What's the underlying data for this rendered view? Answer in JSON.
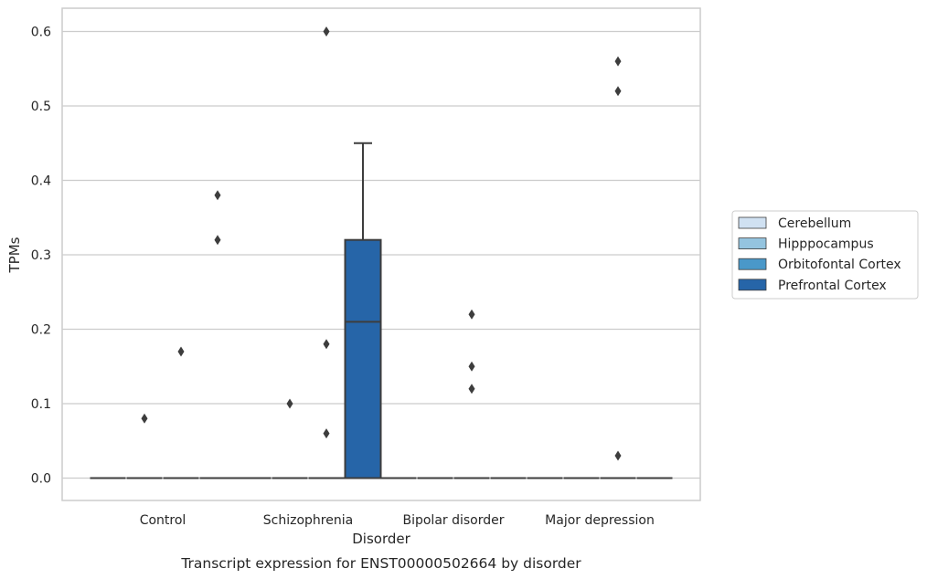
{
  "chart_data": {
    "type": "box",
    "title": "",
    "caption": "Transcript expression for ENST00000502664 by disorder",
    "xlabel": "Disorder",
    "ylabel": "TPMs",
    "ylim": [
      -0.03,
      0.63
    ],
    "yticks": [
      0.0,
      0.1,
      0.2,
      0.3,
      0.4,
      0.5,
      0.6
    ],
    "ytick_labels": [
      "0.0",
      "0.1",
      "0.2",
      "0.3",
      "0.4",
      "0.5",
      "0.6"
    ],
    "grid": "horizontal",
    "legend_position": "right",
    "categories": [
      "Control",
      "Schizophrenia",
      "Bipolar disorder",
      "Major depression"
    ],
    "series": [
      {
        "name": "Cerebellum",
        "color": "#d0e1f2",
        "boxes": [
          {
            "category": "Control",
            "q1": 0,
            "median": 0,
            "q3": 0,
            "whisker_low": 0,
            "whisker_high": 0,
            "outliers": []
          },
          {
            "category": "Schizophrenia",
            "q1": 0,
            "median": 0,
            "q3": 0,
            "whisker_low": 0,
            "whisker_high": 0,
            "outliers": []
          },
          {
            "category": "Bipolar disorder",
            "q1": 0,
            "median": 0,
            "q3": 0,
            "whisker_low": 0,
            "whisker_high": 0,
            "outliers": []
          },
          {
            "category": "Major depression",
            "q1": 0,
            "median": 0,
            "q3": 0,
            "whisker_low": 0,
            "whisker_high": 0,
            "outliers": []
          }
        ]
      },
      {
        "name": "Hipppocampus",
        "color": "#94c4df",
        "boxes": [
          {
            "category": "Control",
            "q1": 0,
            "median": 0,
            "q3": 0,
            "whisker_low": 0,
            "whisker_high": 0,
            "outliers": [
              0.08
            ]
          },
          {
            "category": "Schizophrenia",
            "q1": 0,
            "median": 0,
            "q3": 0,
            "whisker_low": 0,
            "whisker_high": 0,
            "outliers": [
              0.1
            ]
          },
          {
            "category": "Bipolar disorder",
            "q1": 0,
            "median": 0,
            "q3": 0,
            "whisker_low": 0,
            "whisker_high": 0,
            "outliers": []
          },
          {
            "category": "Major depression",
            "q1": 0,
            "median": 0,
            "q3": 0,
            "whisker_low": 0,
            "whisker_high": 0,
            "outliers": []
          }
        ]
      },
      {
        "name": "Orbitofontal Cortex",
        "color": "#4a98c9",
        "boxes": [
          {
            "category": "Control",
            "q1": 0,
            "median": 0,
            "q3": 0,
            "whisker_low": 0,
            "whisker_high": 0,
            "outliers": [
              0.17
            ]
          },
          {
            "category": "Schizophrenia",
            "q1": 0,
            "median": 0,
            "q3": 0,
            "whisker_low": 0,
            "whisker_high": 0,
            "outliers": [
              0.06,
              0.18,
              0.6
            ]
          },
          {
            "category": "Bipolar disorder",
            "q1": 0,
            "median": 0,
            "q3": 0,
            "whisker_low": 0,
            "whisker_high": 0,
            "outliers": [
              0.12,
              0.15,
              0.22
            ]
          },
          {
            "category": "Major depression",
            "q1": 0,
            "median": 0,
            "q3": 0,
            "whisker_low": 0,
            "whisker_high": 0,
            "outliers": [
              0.03,
              0.52,
              0.56
            ]
          }
        ]
      },
      {
        "name": "Prefrontal Cortex",
        "color": "#2665a8",
        "boxes": [
          {
            "category": "Control",
            "q1": 0,
            "median": 0,
            "q3": 0,
            "whisker_low": 0,
            "whisker_high": 0,
            "outliers": [
              0.32,
              0.38
            ]
          },
          {
            "category": "Schizophrenia",
            "q1": 0,
            "median": 0.21,
            "q3": 0.32,
            "whisker_low": 0,
            "whisker_high": 0.45,
            "outliers": []
          },
          {
            "category": "Bipolar disorder",
            "q1": 0,
            "median": 0,
            "q3": 0,
            "whisker_low": 0,
            "whisker_high": 0,
            "outliers": []
          },
          {
            "category": "Major depression",
            "q1": 0,
            "median": 0,
            "q3": 0,
            "whisker_low": 0,
            "whisker_high": 0,
            "outliers": []
          }
        ]
      }
    ],
    "colors": {
      "grid": "#cccccc",
      "frame": "#cccccc",
      "line": "#3d3d3d",
      "outlier": "#3d3d3d",
      "text": "#262626"
    }
  }
}
